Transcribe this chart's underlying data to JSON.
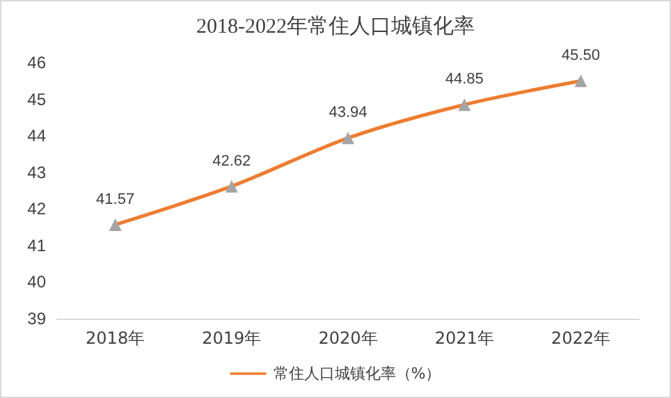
{
  "chart_data": {
    "type": "line",
    "title": "2018-2022年常住人口城镇化率",
    "categories": [
      "2018年",
      "2019年",
      "2020年",
      "2021年",
      "2022年"
    ],
    "series": [
      {
        "name": "常住人口城镇化率（%）",
        "color": "#ed7d31",
        "values": [
          41.57,
          42.62,
          43.94,
          44.85,
          45.5
        ]
      }
    ],
    "value_labels": [
      "41.57",
      "42.62",
      "43.94",
      "44.85",
      "45.50"
    ],
    "ylim": [
      39,
      46
    ],
    "yticks": [
      39,
      40,
      41,
      42,
      43,
      44,
      45,
      46
    ],
    "grid": false,
    "legend": "bottom",
    "marker": "triangle",
    "line_style": "solid"
  }
}
